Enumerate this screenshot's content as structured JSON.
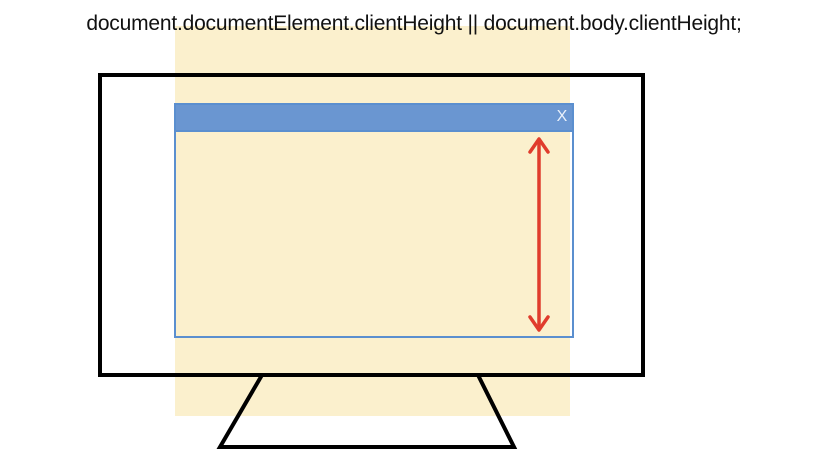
{
  "caption": "document.documentElement.clientHeight || document.body.clientHeight;",
  "window": {
    "close_label": "X"
  },
  "colors": {
    "page_background": "#fbf0cd",
    "titlebar": "#6a96d1",
    "window_border": "#5b8fcf",
    "monitor_outline": "#000000",
    "arrow": "#e03c2c"
  },
  "icons": {
    "monitor": "monitor-outline-icon",
    "arrow": "double-headed-vertical-arrow-icon",
    "close": "close-icon"
  }
}
